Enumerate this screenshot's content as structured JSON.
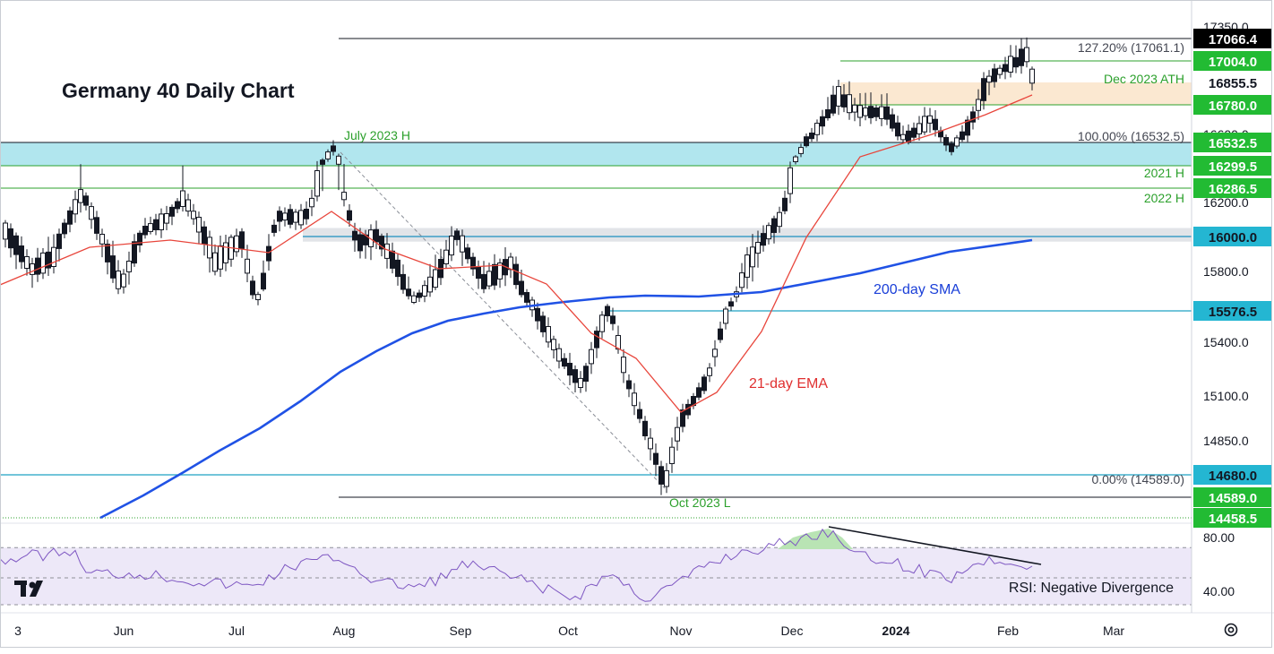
{
  "title": "Germany 40 Daily Chart",
  "chart_data": {
    "type": "candlestick",
    "title": "Germany 40 Daily Chart",
    "ylim": [
      14458.5,
      17350
    ],
    "x_tick_labels": [
      "3",
      "Jun",
      "Jul",
      "Aug",
      "Sep",
      "Oct",
      "Nov",
      "Dec",
      "2024",
      "Feb",
      "Mar"
    ],
    "y_tick_labels": [
      "17350.0",
      "16600.0",
      "16200.0",
      "15800.0",
      "15400.0",
      "15100.0",
      "14850.0"
    ],
    "price_labels": [
      {
        "text": "17066.4",
        "value": 17066.4,
        "style": "black"
      },
      {
        "text": "17004.0",
        "value": 17004.0,
        "style": "green"
      },
      {
        "text": "16855.5",
        "value": 16855.5,
        "style": "plain"
      },
      {
        "text": "16780.0",
        "value": 16780.0,
        "style": "green"
      },
      {
        "text": "16532.5",
        "value": 16532.5,
        "style": "green"
      },
      {
        "text": "16299.5",
        "value": 16299.5,
        "style": "green"
      },
      {
        "text": "16286.5",
        "value": 16286.5,
        "style": "green"
      },
      {
        "text": "16000.0",
        "value": 16000.0,
        "style": "cyan"
      },
      {
        "text": "15576.5",
        "value": 15576.5,
        "style": "cyan"
      },
      {
        "text": "14680.0",
        "value": 14680.0,
        "style": "cyan"
      },
      {
        "text": "14589.0",
        "value": 14589.0,
        "style": "green"
      },
      {
        "text": "14458.5",
        "value": 14458.5,
        "style": "green"
      }
    ],
    "annotations": [
      {
        "text": "127.20% (17061.1)",
        "color": "#434651"
      },
      {
        "text": "Dec 2023 ATH",
        "color": "#2ca02c"
      },
      {
        "text": "July 2023 H",
        "color": "#2ca02c"
      },
      {
        "text": "100.00% (16532.5)",
        "color": "#434651"
      },
      {
        "text": "2021 H",
        "color": "#2ca02c"
      },
      {
        "text": "2022 H",
        "color": "#2ca02c"
      },
      {
        "text": "200-day SMA",
        "color": "#1a3fd8"
      },
      {
        "text": "21-day EMA",
        "color": "#e03030"
      },
      {
        "text": "0.00% (14589.0)",
        "color": "#434651"
      },
      {
        "text": "Oct 2023 L",
        "color": "#2ca02c"
      },
      {
        "text": "RSI: Negative Divergence",
        "color": "#131722"
      }
    ],
    "zones": [
      {
        "name": "resistance-zone",
        "from": 16299.5,
        "to": 16532.5,
        "color": "#a8e3ec"
      },
      {
        "name": "support-zone",
        "from": 15980,
        "to": 16050,
        "color": "#dfe1e5"
      },
      {
        "name": "ath-zone",
        "from": 16780,
        "to": 16855.5,
        "color": "#fbe6cc"
      }
    ],
    "series": [
      {
        "name": "200-day SMA",
        "color": "#2052e5",
        "values": [
          14458,
          14700,
          14950,
          15150,
          15330,
          15460,
          15540,
          15600,
          15620,
          15640,
          15650,
          15660,
          15680,
          15700,
          15720,
          15760,
          15830,
          15910,
          15960,
          16000
        ]
      },
      {
        "name": "21-day EMA",
        "color": "#e8463c",
        "values": [
          15840,
          15960,
          15950,
          15850,
          16040,
          16180,
          15860,
          15960,
          15800,
          15600,
          15380,
          15020,
          15250,
          15560,
          16160,
          16480,
          16600,
          16660,
          16840
        ]
      }
    ],
    "rsi": {
      "ylim": [
        30,
        90
      ],
      "tick_labels": [
        "80.00",
        "40.00"
      ],
      "band_upper": 70,
      "band_lower": 30,
      "last": 60
    }
  }
}
